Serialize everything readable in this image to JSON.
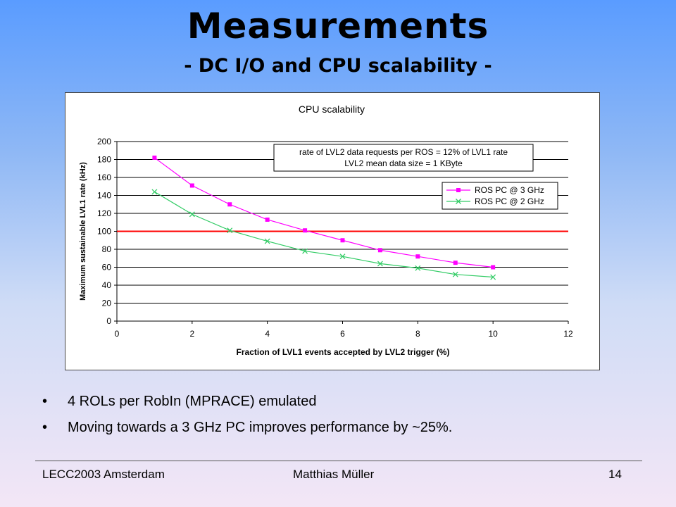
{
  "slide": {
    "title": "Measurements",
    "subtitle": "- DC I/O and CPU scalability -",
    "bullets": [
      "4 ROLs per RobIn (MPRACE) emulated",
      "Moving towards a 3 GHz PC improves performance by ~25%."
    ],
    "footer_left": "LECC2003 Amsterdam",
    "footer_center": "Matthias Müller",
    "footer_right": "14"
  },
  "chart_data": {
    "type": "line",
    "title": "CPU scalability",
    "xlabel": "Fraction of LVL1 events accepted by LVL2 trigger (%)",
    "ylabel": "Maximum sustainable LVL1 rate (kHz)",
    "xlim": [
      0,
      12
    ],
    "ylim": [
      0,
      200
    ],
    "xticks": [
      0,
      2,
      4,
      6,
      8,
      10,
      12
    ],
    "yticks": [
      0,
      20,
      40,
      60,
      80,
      100,
      120,
      140,
      160,
      180,
      200
    ],
    "grid": "horizontal",
    "annotation": [
      "rate of LVL2 data requests per ROS = 12% of LVL1 rate",
      "LVL2 mean data size = 1 KByte"
    ],
    "reference_line": {
      "y": 100,
      "color": "#ff0000"
    },
    "legend_position": "right, below annotation",
    "x": [
      1,
      2,
      3,
      4,
      5,
      6,
      7,
      8,
      9,
      10
    ],
    "series": [
      {
        "name": "ROS PC @ 3 GHz",
        "color": "#ff00ff",
        "marker": "square",
        "values": [
          182,
          151,
          130,
          113,
          101,
          90,
          79,
          72,
          65,
          60
        ]
      },
      {
        "name": "ROS PC @ 2 GHz",
        "color": "#33cc66",
        "marker": "x",
        "values": [
          144,
          119,
          101,
          89,
          78,
          72,
          64,
          59,
          52,
          49
        ]
      }
    ]
  }
}
